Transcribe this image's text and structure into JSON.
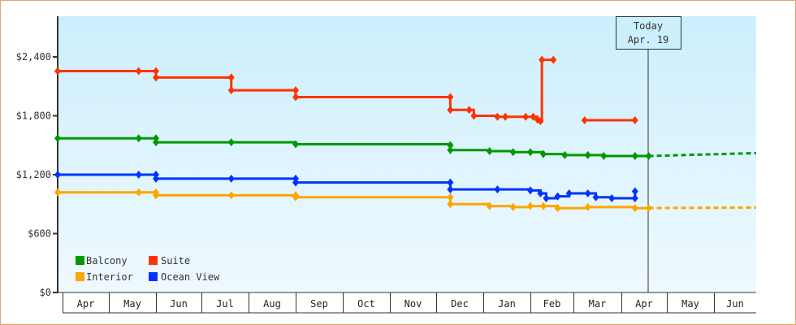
{
  "chart_data": {
    "type": "line",
    "title": "",
    "xlabel": "",
    "ylabel": "",
    "ylim": [
      0,
      2800
    ],
    "y_ticks": [
      {
        "value": 0,
        "label": "$0"
      },
      {
        "value": 600,
        "label": "$600"
      },
      {
        "value": 1200,
        "label": "$1,200"
      },
      {
        "value": 1800,
        "label": "$1,800"
      },
      {
        "value": 2400,
        "label": "$2,400"
      }
    ],
    "x_months": [
      "Apr",
      "May",
      "Jun",
      "Jul",
      "Aug",
      "Sep",
      "Oct",
      "Nov",
      "Dec",
      "Jan",
      "Feb",
      "Mar",
      "Apr",
      "May",
      "Jun"
    ],
    "today_marker": {
      "line1": "Today",
      "line2": "Apr. 19"
    },
    "legend": [
      {
        "name": "Balcony",
        "color": "#009900"
      },
      {
        "name": "Suite",
        "color": "#FF3300"
      },
      {
        "name": "Interior",
        "color": "#FFA500"
      },
      {
        "name": "Ocean View",
        "color": "#0033FF"
      }
    ],
    "grid": false,
    "legend_position": "bottom-left inside plot",
    "series": [
      {
        "name": "Suite",
        "color": "#FF3300",
        "points": [
          {
            "date": "Apr 1",
            "value": 2255
          },
          {
            "date": "May 20",
            "value": 2255
          },
          {
            "date": "Jun 1",
            "value": 2255
          },
          {
            "date": "Jun 1",
            "value": 2190
          },
          {
            "date": "Jul 20",
            "value": 2190
          },
          {
            "date": "Jul 20",
            "value": 2060
          },
          {
            "date": "Sep 1",
            "value": 2060
          },
          {
            "date": "Sep 1",
            "value": 1990
          },
          {
            "date": "Dec 10",
            "value": 1990
          },
          {
            "date": "Dec 10",
            "value": 1860
          },
          {
            "date": "Dec 22",
            "value": 1860
          },
          {
            "date": "Dec 25",
            "value": 1800
          },
          {
            "date": "Jan 10",
            "value": 1790
          },
          {
            "date": "Jan 15",
            "value": 1790
          },
          {
            "date": "Jan 28",
            "value": 1790
          },
          {
            "date": "Feb 3",
            "value": 1790
          },
          {
            "date": "Feb 6",
            "value": 1760
          },
          {
            "date": "Feb 8",
            "value": 1745
          },
          {
            "date": "Feb 9",
            "value": 2370
          },
          {
            "date": "Feb 17",
            "value": 2370
          }
        ],
        "segment_2": [
          {
            "date": "Mar 8",
            "value": 1755
          },
          {
            "date": "Apr 10",
            "value": 1755
          }
        ]
      },
      {
        "name": "Balcony",
        "color": "#009900",
        "points": [
          {
            "date": "Apr 1",
            "value": 1570
          },
          {
            "date": "May 20",
            "value": 1570
          },
          {
            "date": "Jun 1",
            "value": 1570
          },
          {
            "date": "Jun 1",
            "value": 1530
          },
          {
            "date": "Jul 20",
            "value": 1530
          },
          {
            "date": "Sep 1",
            "value": 1510
          },
          {
            "date": "Dec 10",
            "value": 1500
          },
          {
            "date": "Dec 10",
            "value": 1450
          },
          {
            "date": "Jan 5",
            "value": 1440
          },
          {
            "date": "Jan 20",
            "value": 1430
          },
          {
            "date": "Feb 1",
            "value": 1430
          },
          {
            "date": "Feb 10",
            "value": 1410
          },
          {
            "date": "Feb 25",
            "value": 1400
          },
          {
            "date": "Mar 10",
            "value": 1400
          },
          {
            "date": "Mar 20",
            "value": 1390
          },
          {
            "date": "Apr 10",
            "value": 1390
          },
          {
            "date": "Apr 19",
            "value": 1390
          }
        ],
        "forecast": [
          {
            "date": "Apr 19",
            "value": 1390
          },
          {
            "date": "Jun 30",
            "value": 1420
          }
        ]
      },
      {
        "name": "Ocean View",
        "color": "#0033FF",
        "points": [
          {
            "date": "Apr 1",
            "value": 1200
          },
          {
            "date": "May 20",
            "value": 1200
          },
          {
            "date": "Jun 1",
            "value": 1200
          },
          {
            "date": "Jun 1",
            "value": 1160
          },
          {
            "date": "Jul 20",
            "value": 1160
          },
          {
            "date": "Sep 1",
            "value": 1160
          },
          {
            "date": "Sep 1",
            "value": 1120
          },
          {
            "date": "Dec 10",
            "value": 1120
          },
          {
            "date": "Dec 10",
            "value": 1050
          },
          {
            "date": "Jan 10",
            "value": 1050
          },
          {
            "date": "Feb 1",
            "value": 1040
          },
          {
            "date": "Feb 8",
            "value": 1010
          },
          {
            "date": "Feb 12",
            "value": 960
          },
          {
            "date": "Feb 20",
            "value": 980
          },
          {
            "date": "Feb 28",
            "value": 1010
          },
          {
            "date": "Mar 10",
            "value": 1010
          },
          {
            "date": "Mar 15",
            "value": 970
          },
          {
            "date": "Mar 25",
            "value": 960
          },
          {
            "date": "Apr 10",
            "value": 960
          },
          {
            "date": "Apr 10",
            "value": 1030
          }
        ]
      },
      {
        "name": "Interior",
        "color": "#FFA500",
        "points": [
          {
            "date": "Apr 1",
            "value": 1020
          },
          {
            "date": "May 20",
            "value": 1020
          },
          {
            "date": "Jun 1",
            "value": 1020
          },
          {
            "date": "Jun 1",
            "value": 990
          },
          {
            "date": "Jul 20",
            "value": 990
          },
          {
            "date": "Sep 1",
            "value": 990
          },
          {
            "date": "Sep 1",
            "value": 970
          },
          {
            "date": "Dec 10",
            "value": 970
          },
          {
            "date": "Dec 10",
            "value": 900
          },
          {
            "date": "Jan 5",
            "value": 880
          },
          {
            "date": "Jan 20",
            "value": 870
          },
          {
            "date": "Feb 1",
            "value": 880
          },
          {
            "date": "Feb 10",
            "value": 880
          },
          {
            "date": "Feb 20",
            "value": 860
          },
          {
            "date": "Mar 10",
            "value": 870
          },
          {
            "date": "Apr 10",
            "value": 860
          },
          {
            "date": "Apr 19",
            "value": 860
          }
        ],
        "forecast": [
          {
            "date": "Apr 19",
            "value": 860
          },
          {
            "date": "Jun 30",
            "value": 865
          }
        ]
      }
    ]
  }
}
